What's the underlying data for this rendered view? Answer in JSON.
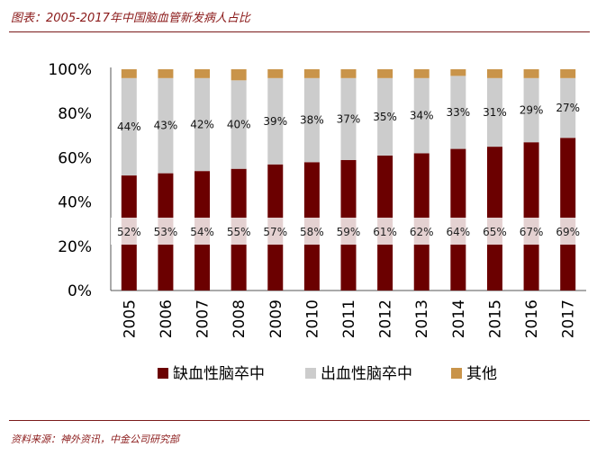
{
  "header": {
    "title": "图表：2005-2017年中国脑血管新发病人占比"
  },
  "footer": {
    "source": "资料来源：神外资讯，中金公司研究部"
  },
  "chart_data": {
    "type": "bar",
    "stacked": true,
    "categories": [
      "2005",
      "2006",
      "2007",
      "2008",
      "2009",
      "2010",
      "2011",
      "2012",
      "2013",
      "2014",
      "2015",
      "2016",
      "2017"
    ],
    "series": [
      {
        "name": "缺血性脑卒中",
        "color": "#6b0000",
        "values": [
          52,
          53,
          54,
          55,
          57,
          58,
          59,
          61,
          62,
          64,
          65,
          67,
          69
        ],
        "labels": [
          "52%",
          "53%",
          "54%",
          "55%",
          "57%",
          "58%",
          "59%",
          "61%",
          "62%",
          "64%",
          "65%",
          "67%",
          "69%"
        ]
      },
      {
        "name": "出血性脑卒中",
        "color": "#cccccc",
        "values": [
          44,
          43,
          42,
          40,
          39,
          38,
          37,
          35,
          34,
          33,
          31,
          29,
          27
        ],
        "labels": [
          "44%",
          "43%",
          "42%",
          "40%",
          "39%",
          "38%",
          "37%",
          "35%",
          "34%",
          "33%",
          "31%",
          "29%",
          "27%"
        ]
      },
      {
        "name": "其他",
        "color": "#c9944a",
        "values": [
          4,
          4,
          4,
          5,
          4,
          4,
          4,
          4,
          4,
          3,
          4,
          4,
          4
        ]
      }
    ],
    "ylim": [
      0,
      100
    ],
    "yticks": [
      "0%",
      "20%",
      "40%",
      "60%",
      "80%",
      "100%"
    ],
    "legend": "bottom"
  }
}
